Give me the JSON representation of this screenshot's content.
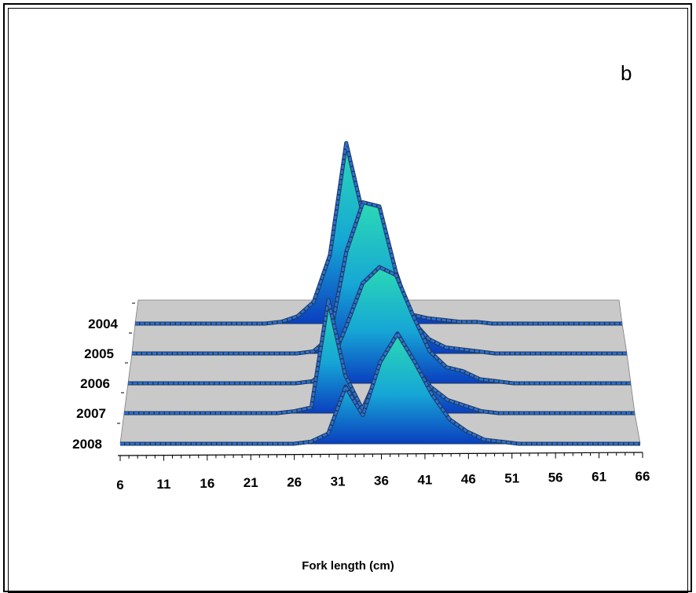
{
  "panel_label": "b",
  "chart_data": {
    "type": "area",
    "view": "3d-ridge",
    "title": "",
    "xlabel": "Fork length (cm)",
    "ylabel": "",
    "xlim": [
      6,
      66
    ],
    "x_ticks": [
      "6",
      "11",
      "16",
      "21",
      "26",
      "31",
      "36",
      "41",
      "46",
      "51",
      "56",
      "61",
      "66"
    ],
    "x": [
      6,
      8,
      10,
      12,
      14,
      16,
      18,
      20,
      22,
      24,
      26,
      28,
      30,
      32,
      34,
      36,
      38,
      40,
      42,
      44,
      46,
      48,
      50,
      52,
      54,
      56,
      58,
      60,
      62,
      64,
      66
    ],
    "series": [
      {
        "name": "2004",
        "values": [
          0,
          0,
          0,
          0,
          0,
          0,
          0,
          0,
          0,
          1,
          4,
          12,
          38,
          100,
          62,
          30,
          12,
          5,
          3,
          2,
          1,
          1,
          0,
          0,
          0,
          0,
          0,
          0,
          0,
          0,
          0
        ]
      },
      {
        "name": "2005",
        "values": [
          0,
          0,
          0,
          0,
          0,
          0,
          0,
          0,
          0,
          0,
          0,
          1,
          8,
          50,
          74,
          72,
          40,
          16,
          7,
          3,
          2,
          1,
          0,
          0,
          0,
          0,
          0,
          0,
          0,
          0,
          0
        ]
      },
      {
        "name": "2006",
        "values": [
          0,
          0,
          0,
          0,
          0,
          0,
          0,
          0,
          0,
          0,
          0,
          1,
          8,
          28,
          50,
          58,
          54,
          34,
          16,
          8,
          6,
          2,
          1,
          0,
          0,
          0,
          0,
          0,
          0,
          0,
          0
        ]
      },
      {
        "name": "2007",
        "values": [
          0,
          0,
          0,
          0,
          0,
          0,
          0,
          0,
          0,
          0,
          1,
          3,
          60,
          20,
          2,
          22,
          34,
          26,
          14,
          7,
          4,
          1,
          0,
          0,
          0,
          0,
          0,
          0,
          0,
          0,
          0
        ]
      },
      {
        "name": "2008",
        "values": [
          0,
          0,
          0,
          0,
          0,
          0,
          0,
          0,
          0,
          0,
          0,
          1,
          5,
          28,
          14,
          40,
          54,
          40,
          24,
          12,
          6,
          2,
          1,
          0,
          0,
          0,
          0,
          0,
          0,
          0,
          0
        ]
      }
    ],
    "colors": {
      "peak": "#2bd9b4",
      "base": "#0b3fbf",
      "floor": "#c9c9c9",
      "ribbon": "#2c6fd6",
      "outline": "#1e3a5a"
    },
    "grid": false,
    "legend": "none"
  }
}
